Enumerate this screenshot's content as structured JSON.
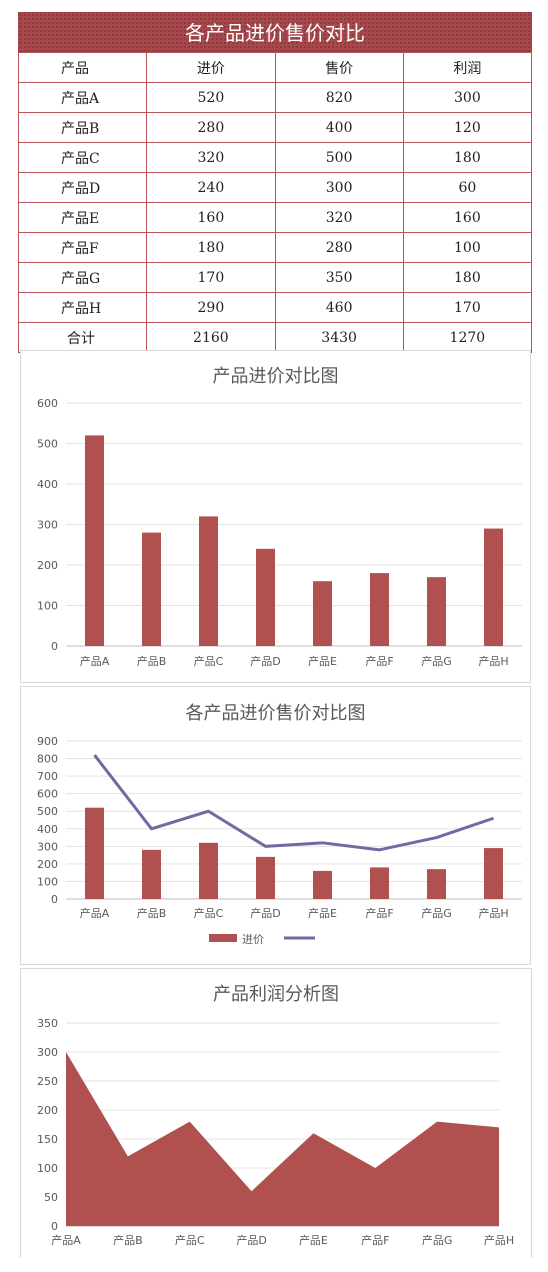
{
  "table": {
    "title": "各产品进价售价对比",
    "headers": [
      "产品",
      "进价",
      "售价",
      "利润"
    ],
    "rows": [
      [
        "产品A",
        "520",
        "820",
        "300"
      ],
      [
        "产品B",
        "280",
        "400",
        "120"
      ],
      [
        "产品C",
        "320",
        "500",
        "180"
      ],
      [
        "产品D",
        "240",
        "300",
        "60"
      ],
      [
        "产品E",
        "160",
        "320",
        "160"
      ],
      [
        "产品F",
        "180",
        "280",
        "100"
      ],
      [
        "产品G",
        "170",
        "350",
        "180"
      ],
      [
        "产品H",
        "290",
        "460",
        "170"
      ]
    ],
    "total": [
      "合计",
      "2160",
      "3430",
      "1270"
    ]
  },
  "chart_data": [
    {
      "type": "bar",
      "title": "产品进价对比图",
      "categories": [
        "产品A",
        "产品B",
        "产品C",
        "产品D",
        "产品E",
        "产品F",
        "产品G",
        "产品H"
      ],
      "values": [
        520,
        280,
        320,
        240,
        160,
        180,
        170,
        290
      ],
      "ylim": [
        0,
        600
      ],
      "yticks": [
        0,
        100,
        200,
        300,
        400,
        500,
        600
      ],
      "grid": true,
      "color": "#b0504f"
    },
    {
      "type": "bar+line",
      "title": "各产品进价售价对比图",
      "categories": [
        "产品A",
        "产品B",
        "产品C",
        "产品D",
        "产品E",
        "产品F",
        "产品G",
        "产品H"
      ],
      "series": [
        {
          "name": "进价",
          "type": "bar",
          "values": [
            520,
            280,
            320,
            240,
            160,
            180,
            170,
            290
          ],
          "color": "#b0504f"
        },
        {
          "type": "line",
          "values": [
            820,
            400,
            500,
            300,
            320,
            280,
            350,
            460
          ],
          "color": "#7667a3"
        }
      ],
      "ylim": [
        0,
        900
      ],
      "yticks": [
        0,
        100,
        200,
        300,
        400,
        500,
        600,
        700,
        800,
        900
      ],
      "grid": true,
      "legend": "bottom"
    },
    {
      "type": "area",
      "title": "产品利润分析图",
      "categories": [
        "产品A",
        "产品B",
        "产品C",
        "产品D",
        "产品E",
        "产品F",
        "产品G",
        "产品H"
      ],
      "values": [
        300,
        120,
        180,
        60,
        160,
        100,
        180,
        170
      ],
      "ylim": [
        0,
        350
      ],
      "yticks": [
        0,
        50,
        100,
        150,
        200,
        250,
        300,
        350
      ],
      "grid": true,
      "color": "#b0504f"
    }
  ]
}
